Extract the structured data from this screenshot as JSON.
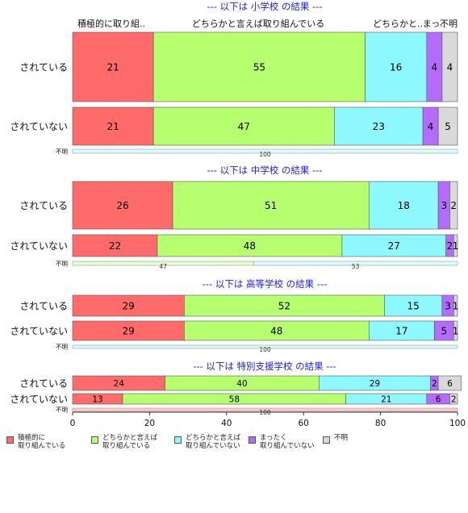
{
  "chart_data": {
    "type": "bar",
    "orientation": "horizontal",
    "stacked": true,
    "xlim": [
      0,
      100
    ],
    "x_ticks": [
      0,
      20,
      40,
      60,
      80,
      100
    ],
    "header_labels": [
      "積極的に取り組..",
      "どちらかと言えば取り組んでいる",
      "どちらかと..",
      "まっ..",
      "不明"
    ],
    "legend_position": "bottom",
    "series": [
      {
        "name": "積極的に\n取り組んでいる",
        "color": "#ff6b6b"
      },
      {
        "name": "どちらかと言えば\n取り組んでいる",
        "color": "#b6ff6e"
      },
      {
        "name": "どちらかと言えば\n取り組んでいない",
        "color": "#8ef8ff"
      },
      {
        "name": "まったく\n取り組んでいない",
        "color": "#b66bff"
      },
      {
        "name": "不明",
        "color": "#d9d9d9"
      }
    ],
    "panels": [
      {
        "title": "--- 以下は 小学校 の結果 ---",
        "rows": [
          {
            "label": "されている",
            "values": [
              21,
              55,
              16,
              4,
              4
            ]
          },
          {
            "label": "されていない",
            "values": [
              21,
              47,
              23,
              4,
              5
            ]
          }
        ],
        "unknown_row": {
          "label": "不明",
          "values": [
            0,
            0,
            100,
            0,
            0
          ]
        }
      },
      {
        "title": "--- 以下は 中学校 の結果 ---",
        "rows": [
          {
            "label": "されている",
            "values": [
              26,
              51,
              18,
              3,
              2
            ]
          },
          {
            "label": "されていない",
            "values": [
              22,
              48,
              27,
              2,
              1
            ]
          }
        ],
        "unknown_row": {
          "label": "不明",
          "values": [
            0,
            47,
            53,
            0,
            0
          ]
        }
      },
      {
        "title": "--- 以下は 高等学校 の結果 ---",
        "rows": [
          {
            "label": "されている",
            "values": [
              29,
              52,
              15,
              3,
              1
            ]
          },
          {
            "label": "されていない",
            "values": [
              29,
              48,
              17,
              5,
              1
            ]
          }
        ],
        "unknown_row": {
          "label": "不明",
          "values": [
            0,
            0,
            100,
            0,
            0
          ]
        }
      },
      {
        "title": "--- 以下は 特別支援学校 の結果 ---",
        "rows": [
          {
            "label": "されている",
            "values": [
              24,
              40,
              29,
              2,
              6
            ]
          },
          {
            "label": "されていない",
            "values": [
              13,
              58,
              21,
              6,
              2
            ]
          }
        ],
        "unknown_row": {
          "label": "不明",
          "values": [
            100,
            0,
            0,
            0,
            0
          ]
        }
      }
    ]
  }
}
